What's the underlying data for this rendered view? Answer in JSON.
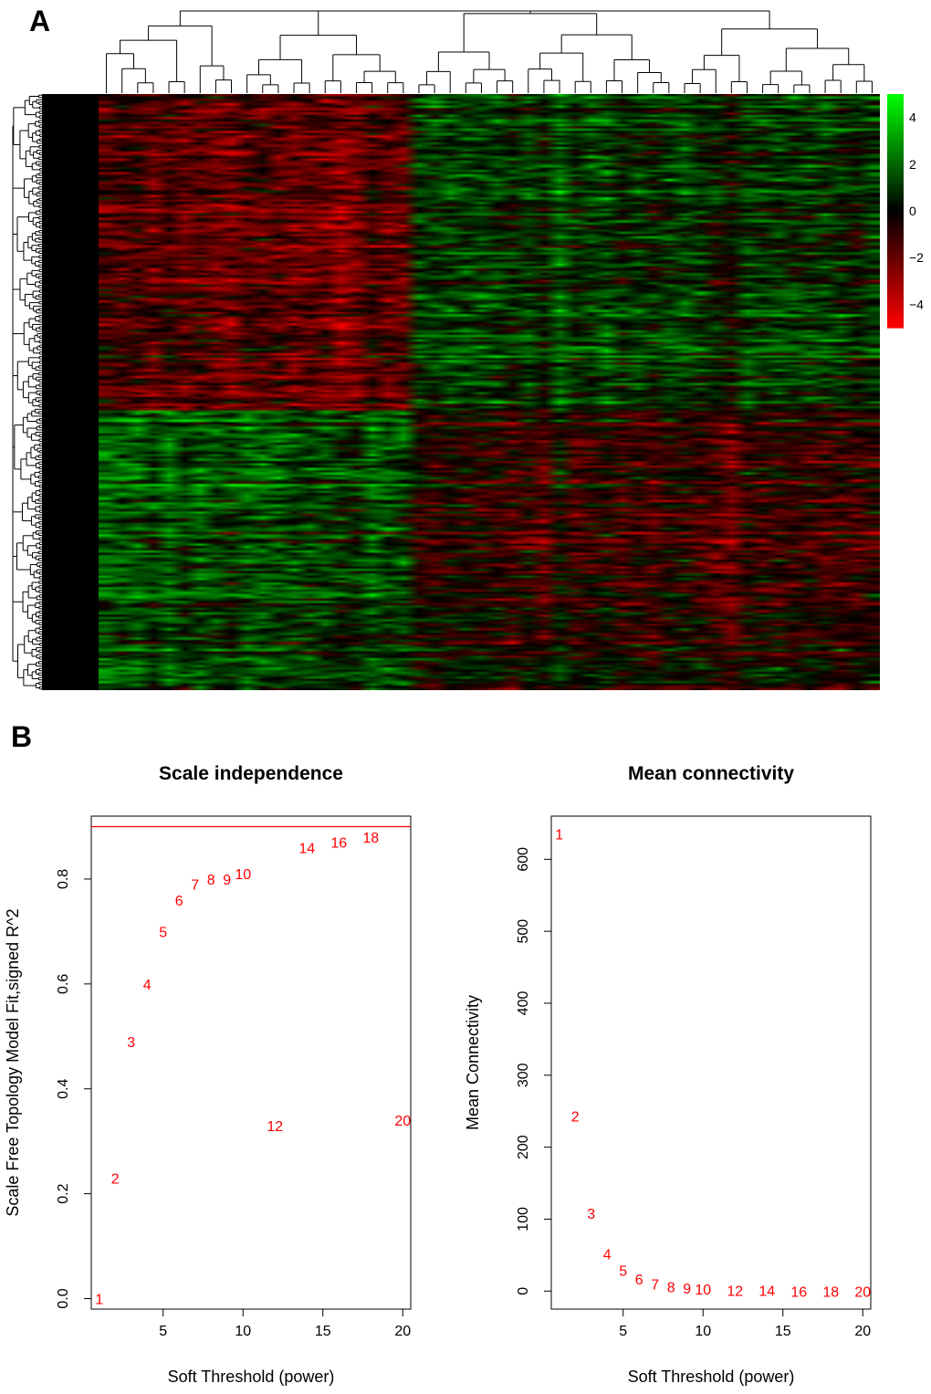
{
  "panel_labels": {
    "a": "A",
    "b": "B"
  },
  "colors": {
    "low": "#ff0000",
    "mid": "#000000",
    "high": "#00ff00",
    "point": "#ff0000",
    "threshold": "#ff0000"
  },
  "chart_data": [
    {
      "id": "heatmap",
      "type": "heatmap",
      "title": "",
      "n_samples": 50,
      "n_genes": 260,
      "value_range": [
        -5,
        5
      ],
      "colorbar_ticks": [
        4,
        2,
        0,
        -2,
        -4
      ],
      "colorbar_tick_labels": [
        "4",
        "2",
        "0",
        "−2",
        "−4"
      ],
      "has_row_dendrogram": true,
      "has_column_dendrogram": true
    },
    {
      "id": "scale-independence",
      "type": "scatter",
      "title": "Scale independence",
      "xlabel": "Soft Threshold (power)",
      "ylabel": "Scale Free Topology Model Fit,signed R^2",
      "xlim": [
        0.5,
        20.5
      ],
      "ylim": [
        -0.02,
        0.92
      ],
      "xticks": [
        5,
        10,
        15,
        20
      ],
      "xtick_labels": [
        "5",
        "10",
        "15",
        "20"
      ],
      "yticks": [
        0.0,
        0.2,
        0.4,
        0.6,
        0.8
      ],
      "ytick_labels": [
        "0.0",
        "0.2",
        "0.4",
        "0.6",
        "0.8"
      ],
      "threshold": 0.9,
      "x": [
        1,
        2,
        3,
        4,
        5,
        6,
        7,
        8,
        9,
        10,
        12,
        14,
        16,
        18,
        20
      ],
      "y": [
        0.0,
        0.23,
        0.49,
        0.6,
        0.7,
        0.76,
        0.79,
        0.8,
        0.8,
        0.81,
        0.33,
        0.86,
        0.87,
        0.88,
        0.34
      ],
      "labels": [
        "1",
        "2",
        "3",
        "4",
        "5",
        "6",
        "7",
        "8",
        "9",
        "10",
        "12",
        "14",
        "16",
        "18",
        "20"
      ]
    },
    {
      "id": "mean-connectivity",
      "type": "scatter",
      "title": "Mean connectivity",
      "xlabel": "Soft Threshold (power)",
      "ylabel": "Mean Connectivity",
      "xlim": [
        0.5,
        20.5
      ],
      "ylim": [
        -25,
        660
      ],
      "xticks": [
        5,
        10,
        15,
        20
      ],
      "xtick_labels": [
        "5",
        "10",
        "15",
        "20"
      ],
      "yticks": [
        0,
        100,
        200,
        300,
        400,
        500,
        600
      ],
      "ytick_labels": [
        "0",
        "100",
        "200",
        "300",
        "400",
        "500",
        "600"
      ],
      "x": [
        1,
        2,
        3,
        4,
        5,
        6,
        7,
        8,
        9,
        10,
        12,
        14,
        16,
        18,
        20
      ],
      "y": [
        635,
        243,
        108,
        52,
        29,
        17,
        10,
        6,
        4,
        3,
        1,
        1,
        0,
        0,
        0
      ],
      "labels": [
        "1",
        "2",
        "3",
        "4",
        "5",
        "6",
        "7",
        "8",
        "9",
        "10",
        "12",
        "14",
        "16",
        "18",
        "20"
      ]
    }
  ]
}
